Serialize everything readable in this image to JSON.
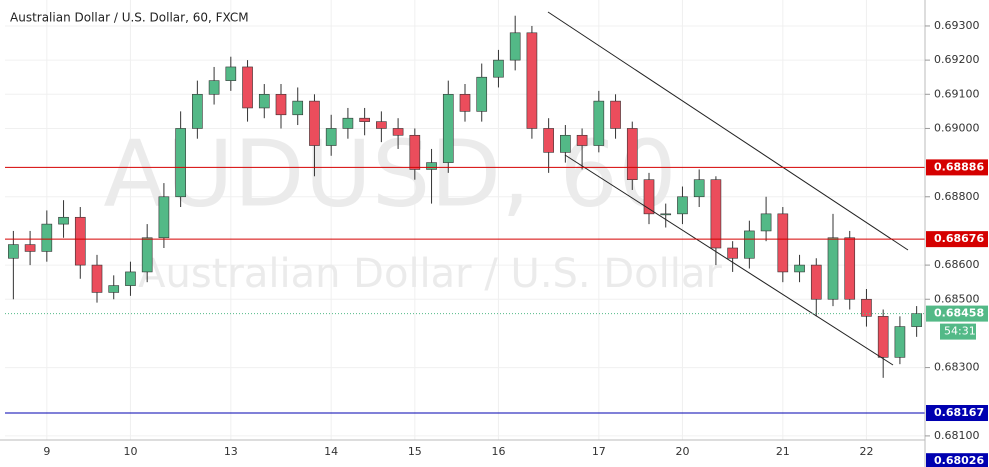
{
  "chart_data": {
    "type": "candlestick",
    "title": "Australian Dollar / U.S. Dollar, 60, FXCM",
    "watermark": "AUDUSD, 60",
    "watermark_subtitle": "Australian Dollar / U.S. Dollar",
    "categories": [
      null,
      null,
      "9",
      null,
      null,
      null,
      null,
      "10",
      null,
      null,
      null,
      null,
      null,
      "13",
      null,
      null,
      null,
      null,
      null,
      "14",
      null,
      null,
      null,
      null,
      "15",
      null,
      null,
      null,
      null,
      "16",
      null,
      null,
      null,
      null,
      null,
      "17",
      null,
      null,
      null,
      null,
      "20",
      null,
      null,
      null,
      null,
      null,
      "21",
      null,
      null,
      null,
      null,
      "22",
      null,
      null,
      null
    ],
    "open": [
      0.6862,
      0.6866,
      0.6864,
      0.6872,
      0.6874,
      0.686,
      0.6852,
      0.6854,
      0.6858,
      0.6868,
      0.688,
      0.69,
      0.691,
      0.6914,
      0.6918,
      0.6906,
      0.691,
      0.6904,
      0.6908,
      0.6895,
      0.69,
      0.6903,
      0.6902,
      0.69,
      0.6898,
      0.6888,
      0.689,
      0.691,
      0.6905,
      0.6915,
      0.692,
      0.6928,
      0.69,
      0.6893,
      0.6898,
      0.6895,
      0.6908,
      0.69,
      0.6885,
      0.6875,
      0.6875,
      0.688,
      0.6885,
      0.6865,
      0.6862,
      0.687,
      0.6875,
      0.6858,
      0.686,
      0.685,
      0.6868,
      0.685,
      0.6845,
      0.6833,
      0.6842
    ],
    "high": [
      0.687,
      0.687,
      0.6876,
      0.6879,
      0.6877,
      0.6863,
      0.6857,
      0.6861,
      0.6872,
      0.6884,
      0.6905,
      0.6914,
      0.6918,
      0.6921,
      0.692,
      0.6913,
      0.6913,
      0.6912,
      0.691,
      0.6904,
      0.6906,
      0.6906,
      0.6905,
      0.6903,
      0.69,
      0.6894,
      0.6914,
      0.6913,
      0.6919,
      0.6923,
      0.6933,
      0.693,
      0.6903,
      0.6901,
      0.69,
      0.6911,
      0.691,
      0.6902,
      0.6887,
      0.6878,
      0.6883,
      0.6888,
      0.6886,
      0.6867,
      0.6873,
      0.688,
      0.6877,
      0.6863,
      0.6862,
      0.6875,
      0.687,
      0.6853,
      0.6847,
      0.6845,
      0.6848
    ],
    "low": [
      0.685,
      0.686,
      0.6861,
      0.6868,
      0.6856,
      0.6849,
      0.685,
      0.6851,
      0.6855,
      0.6865,
      0.6877,
      0.6897,
      0.6907,
      0.6911,
      0.6902,
      0.6903,
      0.69,
      0.6901,
      0.6886,
      0.6892,
      0.6897,
      0.6898,
      0.6896,
      0.6894,
      0.6885,
      0.6878,
      0.6887,
      0.6902,
      0.6902,
      0.6912,
      0.6917,
      0.6897,
      0.6887,
      0.689,
      0.6888,
      0.6893,
      0.6897,
      0.6882,
      0.6872,
      0.6871,
      0.6872,
      0.6877,
      0.686,
      0.6858,
      0.6859,
      0.6867,
      0.6855,
      0.6855,
      0.6845,
      0.6848,
      0.6847,
      0.6842,
      0.6827,
      0.6831,
      0.6839
    ],
    "close": [
      0.6866,
      0.6864,
      0.6872,
      0.6874,
      0.686,
      0.6852,
      0.6854,
      0.6858,
      0.6868,
      0.688,
      0.69,
      0.691,
      0.6914,
      0.6918,
      0.6906,
      0.691,
      0.6904,
      0.6908,
      0.6895,
      0.69,
      0.6903,
      0.6902,
      0.69,
      0.6898,
      0.6888,
      0.689,
      0.691,
      0.6905,
      0.6915,
      0.692,
      0.6928,
      0.69,
      0.6893,
      0.6898,
      0.6895,
      0.6908,
      0.69,
      0.6885,
      0.6875,
      0.6875,
      0.688,
      0.6885,
      0.6865,
      0.6862,
      0.687,
      0.6875,
      0.6858,
      0.686,
      0.685,
      0.6868,
      0.685,
      0.6845,
      0.6833,
      0.6842,
      0.68458
    ],
    "up_color": "#53b987",
    "down_color": "#eb4d5c",
    "ylim": [
      0.68088,
      0.69376
    ],
    "yticks": [
      {
        "value": 0.693,
        "label": "0.69300"
      },
      {
        "value": 0.692,
        "label": "0.69200"
      },
      {
        "value": 0.691,
        "label": "0.69100"
      },
      {
        "value": 0.69,
        "label": "0.69000"
      },
      {
        "value": 0.688,
        "label": "0.68800"
      },
      {
        "value": 0.686,
        "label": "0.68600"
      },
      {
        "value": 0.685,
        "label": "0.68500"
      },
      {
        "value": 0.683,
        "label": "0.68300"
      },
      {
        "value": 0.681,
        "label": "0.68100"
      }
    ],
    "grid": true,
    "levels": [
      {
        "value": 0.68886,
        "color": "#d50000"
      },
      {
        "value": 0.68676,
        "color": "#d50000"
      },
      {
        "value": 0.68167,
        "color": "#0000b0"
      },
      {
        "value": 0.68026,
        "color": "#0000b0"
      }
    ],
    "last_price": {
      "value": 0.68458,
      "color": "#53b987",
      "countdown": "54:31"
    }
  }
}
